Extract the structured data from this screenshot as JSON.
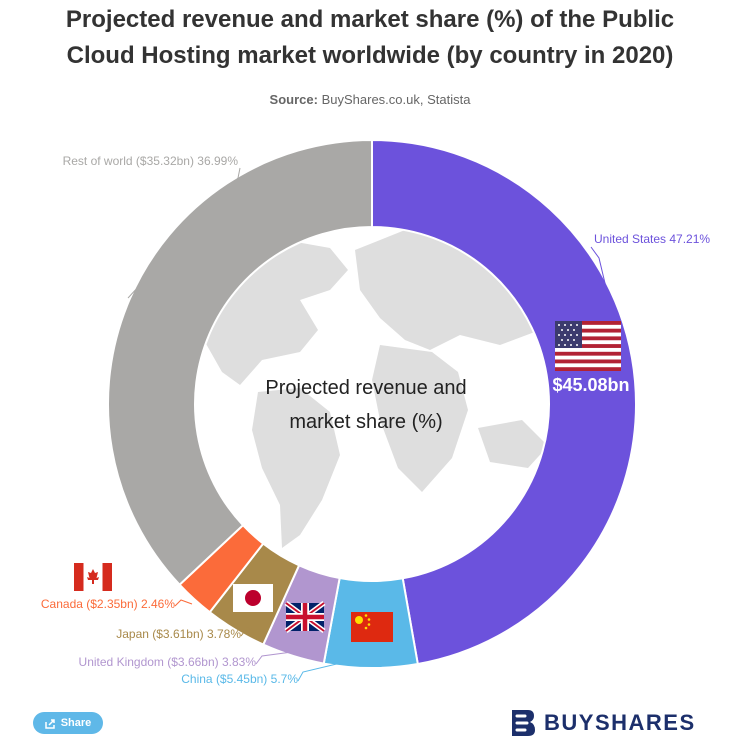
{
  "title_line1": "Projected revenue and market share (%) of the Public",
  "title_line2": "Cloud Hosting market worldwide (by country in 2020)",
  "source_label": "Source:",
  "source_text": "BuyShares.co.uk, Statista",
  "center_label_line1": "Projected revenue and",
  "center_label_line2": "market share (%)",
  "us_value_label": "$45.08bn",
  "share_button": "Share",
  "brand_name": "BUYSHARES",
  "chart_data": {
    "type": "pie",
    "subtype": "donut",
    "title": "Projected revenue and market share (%) of the Public Cloud Hosting market worldwide (by country in 2020)",
    "center_label": "Projected revenue and market share (%)",
    "series": [
      {
        "name": "United States",
        "value": 47.21,
        "revenue_bn": 45.08,
        "color": "#6c52dc",
        "label": "United States 47.21%",
        "flag": "us-flag"
      },
      {
        "name": "China",
        "value": 5.7,
        "revenue_bn": 5.45,
        "color": "#5ab9e8",
        "label": "China ($5.45bn) 5.7%",
        "flag": "cn-flag"
      },
      {
        "name": "United Kingdom",
        "value": 3.83,
        "revenue_bn": 3.66,
        "color": "#b196cf",
        "label": "United Kingdom ($3.66bn) 3.83%",
        "flag": "uk-flag"
      },
      {
        "name": "Japan",
        "value": 3.78,
        "revenue_bn": 3.61,
        "color": "#a8894a",
        "label": "Japan ($3.61bn) 3.78%",
        "flag": "jp-flag"
      },
      {
        "name": "Canada",
        "value": 2.46,
        "revenue_bn": 2.35,
        "color": "#fb6b3a",
        "label": "Canada ($2.35bn) 2.46%",
        "flag": "ca-flag"
      },
      {
        "name": "Rest of world",
        "value": 36.99,
        "revenue_bn": 35.32,
        "color": "#a9a8a6",
        "label": "Rest of world ($35.32bn) 36.99%"
      }
    ]
  }
}
